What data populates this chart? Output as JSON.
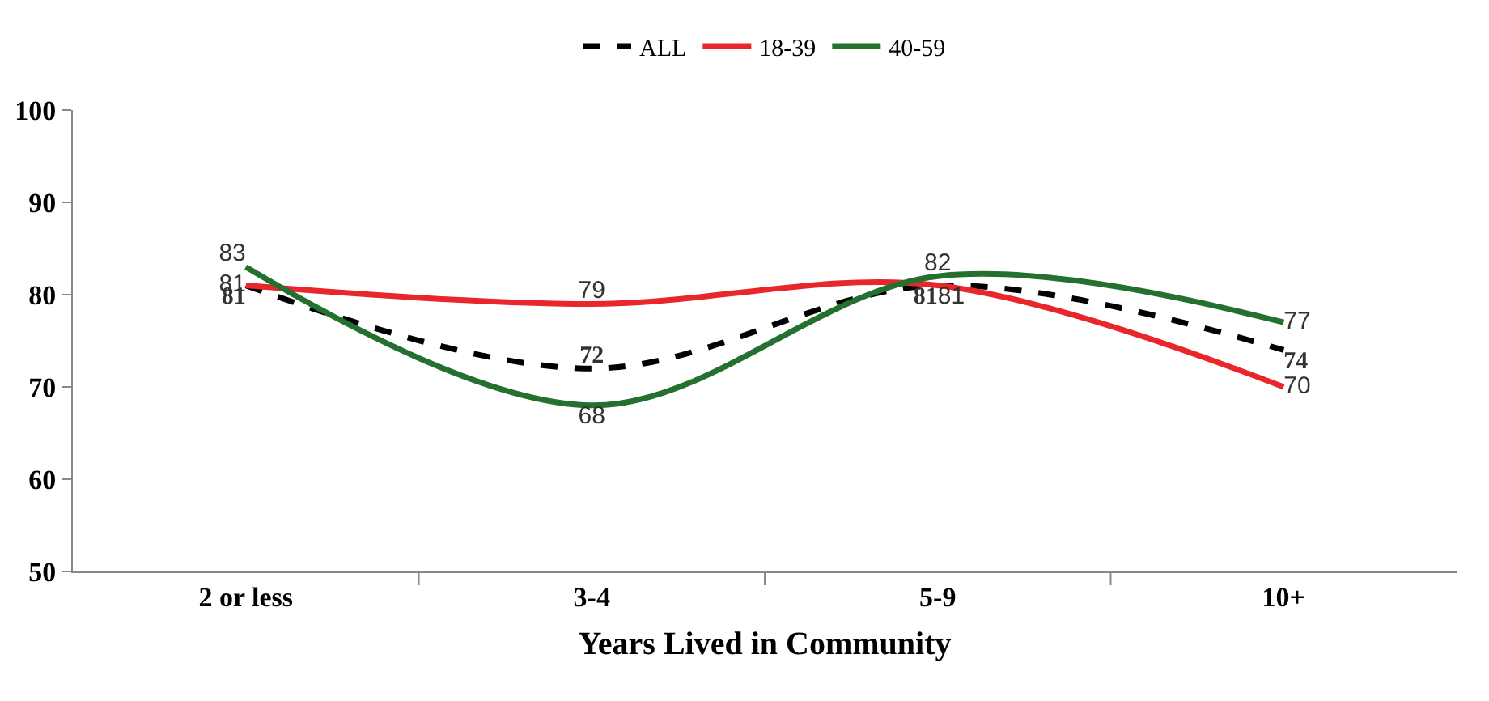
{
  "chart_data": {
    "type": "line",
    "xlabel": "Years Lived in Community",
    "categories": [
      "2 or less",
      "3-4",
      "5-9",
      "10+"
    ],
    "series": [
      {
        "name": "ALL",
        "color": "#000000",
        "line_style": "dashed",
        "values": [
          81,
          72,
          81,
          74
        ]
      },
      {
        "name": "18-39",
        "color": "#e8262b",
        "line_style": "solid",
        "values": [
          81,
          79,
          81,
          70
        ]
      },
      {
        "name": "40-59",
        "color": "#23702f",
        "line_style": "solid",
        "values": [
          83,
          68,
          82,
          77
        ]
      }
    ],
    "ylim": [
      50,
      100
    ],
    "yticks": [
      50,
      60,
      70,
      80,
      90,
      100
    ],
    "grid": false,
    "legend": "top",
    "marker": "none",
    "data_labels": true
  }
}
